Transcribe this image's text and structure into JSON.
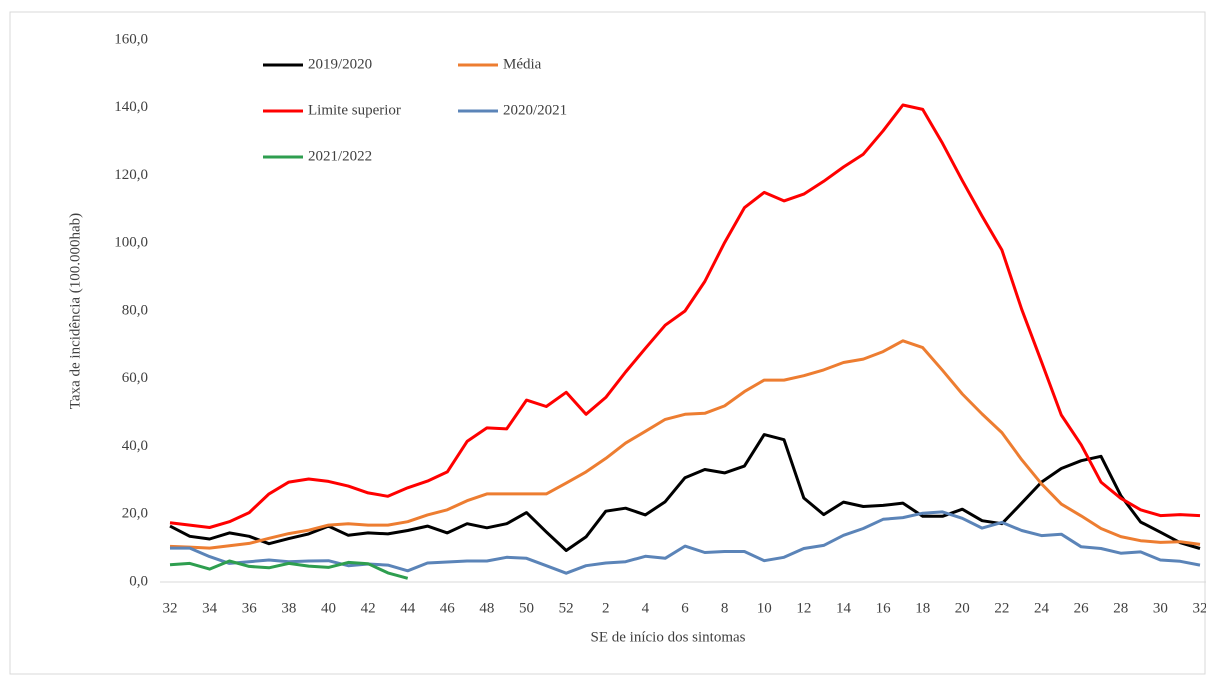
{
  "chart_data": {
    "type": "line",
    "y_label": "Taxa de incidência (100.000hab)",
    "x_label": "SE de início dos sintomas",
    "categories": [
      "32",
      null,
      "34",
      null,
      "36",
      null,
      "38",
      null,
      "40",
      null,
      "42",
      null,
      "44",
      null,
      "46",
      null,
      "48",
      null,
      "50",
      null,
      "52",
      null,
      "2",
      null,
      "4",
      null,
      "6",
      null,
      "8",
      null,
      "10",
      null,
      "12",
      null,
      "14",
      null,
      "16",
      null,
      "18",
      null,
      "20",
      null,
      "22",
      null,
      "24",
      null,
      "26",
      null,
      "28",
      null,
      "30",
      null,
      "32"
    ],
    "ylim": [
      0,
      160
    ],
    "yticks": [
      {
        "value": 0,
        "label": "0,0"
      },
      {
        "value": 20,
        "label": "20,0"
      },
      {
        "value": 40,
        "label": "40,0"
      },
      {
        "value": 60,
        "label": "60,0"
      },
      {
        "value": 80,
        "label": "80,0"
      },
      {
        "value": 100,
        "label": "100,0"
      },
      {
        "value": 120,
        "label": "120,0"
      },
      {
        "value": 140,
        "label": "140,0"
      },
      {
        "value": 160,
        "label": "160,0"
      }
    ],
    "grid": false,
    "legend": "upper-left",
    "series": [
      {
        "name": "2019/2020",
        "color": "#000000",
        "values": [
          16.5,
          13.5,
          12.7,
          14.5,
          13.5,
          11.3,
          12.8,
          14.2,
          16.5,
          13.8,
          14.5,
          14.2,
          15.2,
          16.5,
          14.5,
          17.2,
          16,
          17.2,
          20.5,
          14.8,
          9.3,
          13.3,
          20.9,
          21.8,
          19.8,
          23.7,
          30.8,
          33.2,
          32.2,
          34.2,
          43.5,
          42,
          24.8,
          19.9,
          23.6,
          22.3,
          22.6,
          23.3,
          19.4,
          19.4,
          21.5,
          18.1,
          17.2,
          23.3,
          29.5,
          33.5,
          35.8,
          37.1,
          25.5,
          17.7,
          14.7,
          11.6,
          9.9
        ]
      },
      {
        "name": "Média",
        "color": "#ed7d31",
        "values": [
          10.5,
          10.3,
          10,
          10.7,
          11.4,
          12.9,
          14.3,
          15.3,
          16.8,
          17.2,
          16.8,
          16.8,
          17.8,
          19.8,
          21.3,
          24,
          26,
          26,
          26,
          26,
          29.2,
          32.5,
          36.5,
          41,
          44.5,
          48,
          49.5,
          49.8,
          52,
          56.2,
          59.6,
          59.6,
          60.9,
          62.6,
          64.8,
          65.8,
          68,
          71.2,
          69.2,
          62.5,
          55.5,
          49.6,
          44.1,
          36.1,
          29,
          23,
          19.5,
          15.8,
          13.4,
          12.2,
          11.7,
          11.9,
          11.1
        ]
      },
      {
        "name": "Limite superior",
        "color": "#ff0000",
        "values": [
          17.5,
          16.8,
          16.1,
          17.8,
          20.5,
          26,
          29.5,
          30.4,
          29.7,
          28.3,
          26.3,
          25.3,
          27.8,
          29.8,
          32.5,
          41.5,
          45.5,
          45.2,
          53.7,
          51.8,
          56,
          49.5,
          54.5,
          62,
          69,
          75.8,
          80,
          88.7,
          100.2,
          110.5,
          115,
          112.5,
          114.5,
          118.3,
          122.5,
          126.3,
          133.2,
          140.8,
          139.5,
          129.5,
          118.5,
          108,
          98,
          80.5,
          65,
          49.3,
          40.5,
          29.5,
          24.7,
          21.3,
          19.6,
          19.9,
          19.6
        ]
      },
      {
        "name": "2020/2021",
        "color": "#5b84b8",
        "values": [
          10,
          10,
          7.5,
          5.5,
          6,
          6.5,
          6,
          6.2,
          6.3,
          4.8,
          5.3,
          5,
          3.3,
          5.6,
          5.9,
          6.2,
          6.2,
          7.3,
          7,
          4.8,
          2.6,
          4.8,
          5.6,
          6,
          7.6,
          7,
          10.6,
          8.7,
          9,
          9,
          6.3,
          7.3,
          9.9,
          10.8,
          13.8,
          15.8,
          18.5,
          19,
          20.3,
          20.7,
          18.8,
          15.9,
          17.6,
          15.2,
          13.7,
          14.1,
          10.4,
          9.9,
          8.5,
          8.9,
          6.5,
          6.1,
          5
        ]
      },
      {
        "name": "2021/2022",
        "color": "#2e9e4f",
        "values": [
          5.1,
          5.5,
          3.8,
          6.2,
          4.6,
          4.2,
          5.5,
          4.7,
          4.3,
          5.8,
          5.4,
          2.7,
          1.1,
          null,
          null,
          null,
          null,
          null,
          null,
          null,
          null,
          null,
          null,
          null,
          null,
          null,
          null,
          null,
          null,
          null,
          null,
          null,
          null,
          null,
          null,
          null,
          null,
          null,
          null,
          null,
          null,
          null,
          null,
          null,
          null,
          null,
          null,
          null,
          null,
          null,
          null,
          null,
          null
        ]
      }
    ]
  }
}
